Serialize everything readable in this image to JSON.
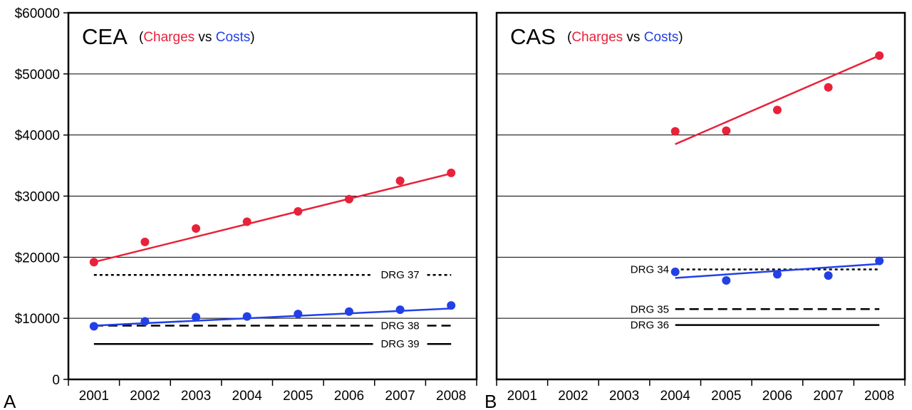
{
  "y_axis_labels": [
    "0",
    "$10000",
    "$20000",
    "$30000",
    "$40000",
    "$50000",
    "$60000"
  ],
  "x_axis_labels": [
    "2001",
    "2002",
    "2003",
    "2004",
    "2005",
    "2006",
    "2007",
    "2008"
  ],
  "colors": {
    "charges": "#e8223a",
    "costs": "#2340e6",
    "drg": "#000000",
    "grid": "#000000"
  },
  "chart_data": [
    {
      "type": "scatter",
      "panel_label": "A",
      "title": "CEA",
      "subtitle": {
        "open": "(",
        "charges": "Charges",
        "vs": " vs ",
        "costs": "Costs",
        "close": ")"
      },
      "xlabel": "",
      "ylabel": "",
      "ylim": [
        0,
        60000
      ],
      "x": [
        2001,
        2002,
        2003,
        2004,
        2005,
        2006,
        2007,
        2008
      ],
      "grid": true,
      "series": [
        {
          "key": "charges",
          "values": [
            19200,
            22500,
            24700,
            25800,
            27500,
            29500,
            32500,
            33800
          ],
          "trend": [
            [
              2001,
              19200
            ],
            [
              2008,
              33700
            ]
          ]
        },
        {
          "key": "costs",
          "values": [
            8700,
            9500,
            10200,
            10300,
            10700,
            11100,
            11400,
            12100
          ],
          "trend": [
            [
              2001,
              8800
            ],
            [
              2008,
              11600
            ]
          ]
        }
      ],
      "reference_lines": [
        {
          "label": "DRG 37",
          "value": 17100,
          "style": "dotted",
          "x_start": 2001,
          "x_end": 2008,
          "label_x": 2007
        },
        {
          "label": "DRG 38",
          "value": 8800,
          "style": "dashed",
          "x_start": 2001,
          "x_end": 2008,
          "label_x": 2007
        },
        {
          "label": "DRG 39",
          "value": 5800,
          "style": "solid",
          "x_start": 2001,
          "x_end": 2008,
          "label_x": 2007
        }
      ]
    },
    {
      "type": "scatter",
      "panel_label": "B",
      "title": "CAS",
      "subtitle": {
        "open": "(",
        "charges": "Charges",
        "vs": " vs ",
        "costs": "Costs",
        "close": ")"
      },
      "xlabel": "",
      "ylabel": "",
      "ylim": [
        0,
        60000
      ],
      "x": [
        2001,
        2002,
        2003,
        2004,
        2005,
        2006,
        2007,
        2008
      ],
      "grid": true,
      "series": [
        {
          "key": "charges",
          "values": [
            null,
            null,
            null,
            40600,
            40700,
            44100,
            47800,
            53000
          ],
          "trend": [
            [
              2004,
              38500
            ],
            [
              2008,
              53000
            ]
          ]
        },
        {
          "key": "costs",
          "values": [
            null,
            null,
            null,
            17600,
            16200,
            17200,
            17000,
            19400
          ],
          "trend": [
            [
              2004,
              16600
            ],
            [
              2008,
              18900
            ]
          ]
        }
      ],
      "reference_lines": [
        {
          "label": "DRG 34",
          "value": 18000,
          "style": "dotted",
          "x_start": 2004,
          "x_end": 2008,
          "label_x": 2003.5
        },
        {
          "label": "DRG 35",
          "value": 11500,
          "style": "dashed",
          "x_start": 2004,
          "x_end": 2008,
          "label_x": 2003.5
        },
        {
          "label": "DRG 36",
          "value": 8900,
          "style": "solid",
          "x_start": 2004,
          "x_end": 2008,
          "label_x": 2003.5
        }
      ]
    }
  ]
}
